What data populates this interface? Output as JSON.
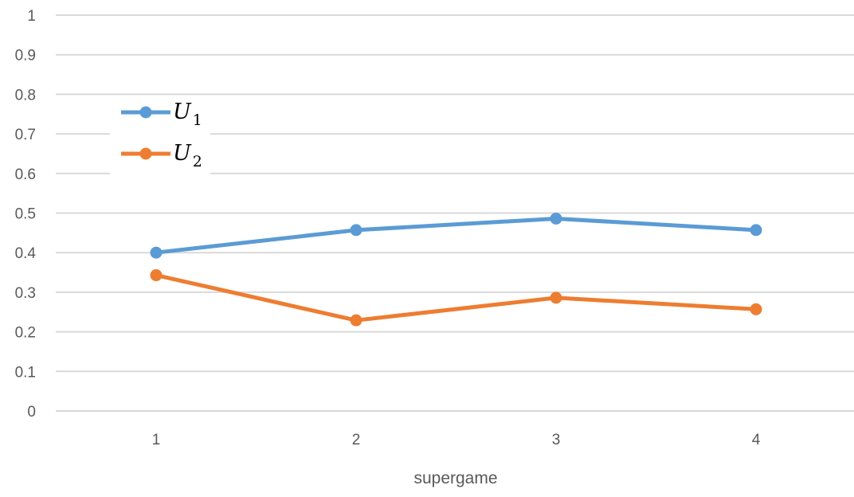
{
  "chart_data": {
    "type": "line",
    "title": "",
    "xlabel": "supergame",
    "ylabel": "",
    "categories": [
      "1",
      "2",
      "3",
      "4"
    ],
    "ylim": [
      0,
      1
    ],
    "yticks": [
      "0",
      "0.1",
      "0.2",
      "0.3",
      "0.4",
      "0.5",
      "0.6",
      "0.7",
      "0.8",
      "0.9",
      "1"
    ],
    "grid": "horizontal",
    "legend_position": "top-left",
    "series": [
      {
        "name": "U",
        "subscript": "1",
        "color": "#5b9bd5",
        "values": [
          0.4,
          0.457,
          0.486,
          0.457
        ]
      },
      {
        "name": "U",
        "subscript": "2",
        "color": "#ed7d31",
        "values": [
          0.343,
          0.229,
          0.286,
          0.257
        ]
      }
    ]
  }
}
